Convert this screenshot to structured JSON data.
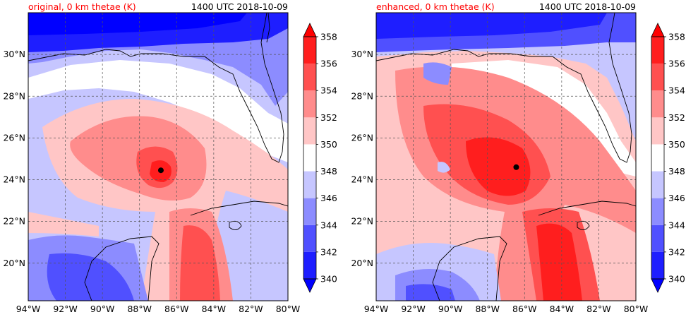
{
  "panels": [
    {
      "title_left": "original, 0 km thetae (K)",
      "title_right": "1400 UTC 2018-10-09",
      "storm_center": {
        "lon": -86.85,
        "lat": 24.45
      },
      "style": "original"
    },
    {
      "title_left": "enhanced, 0 km thetae (K)",
      "title_right": "1400 UTC 2018-10-09",
      "storm_center": {
        "lon": -86.45,
        "lat": 24.6
      },
      "style": "enhanced"
    }
  ],
  "map_extent": {
    "lon": [
      -94,
      -80
    ],
    "lat": [
      18.2,
      32.0
    ]
  },
  "x_ticks": [
    {
      "value": -94,
      "label": "94°W"
    },
    {
      "value": -92,
      "label": "92°W"
    },
    {
      "value": -90,
      "label": "90°W"
    },
    {
      "value": -88,
      "label": "88°W"
    },
    {
      "value": -86,
      "label": "86°W"
    },
    {
      "value": -84,
      "label": "84°W"
    },
    {
      "value": -82,
      "label": "82°W"
    },
    {
      "value": -80,
      "label": "80°W"
    }
  ],
  "y_ticks": [
    {
      "value": 20,
      "label": "20°N"
    },
    {
      "value": 22,
      "label": "22°N"
    },
    {
      "value": 24,
      "label": "24°N"
    },
    {
      "value": 26,
      "label": "26°N"
    },
    {
      "value": 28,
      "label": "28°N"
    },
    {
      "value": 30,
      "label": "30°N"
    }
  ],
  "colorbar": {
    "levels": [
      340,
      342,
      344,
      346,
      348,
      350,
      352,
      354,
      356,
      358
    ],
    "labels": [
      "340",
      "342",
      "344",
      "346",
      "348",
      "350",
      "352",
      "354",
      "356",
      "358"
    ],
    "colors": [
      "#1e1eff",
      "#5050ff",
      "#8c8cff",
      "#c6c6ff",
      "#ffffff",
      "#ffc6c6",
      "#ff8c8c",
      "#ff5050",
      "#ff1e1e"
    ],
    "under_color": "#0000ff",
    "over_color": "#ff0000"
  },
  "colors": {
    "title_left": "#ff0000",
    "title_right": "#000000",
    "coast": "#000000",
    "grid": "#555555"
  }
}
